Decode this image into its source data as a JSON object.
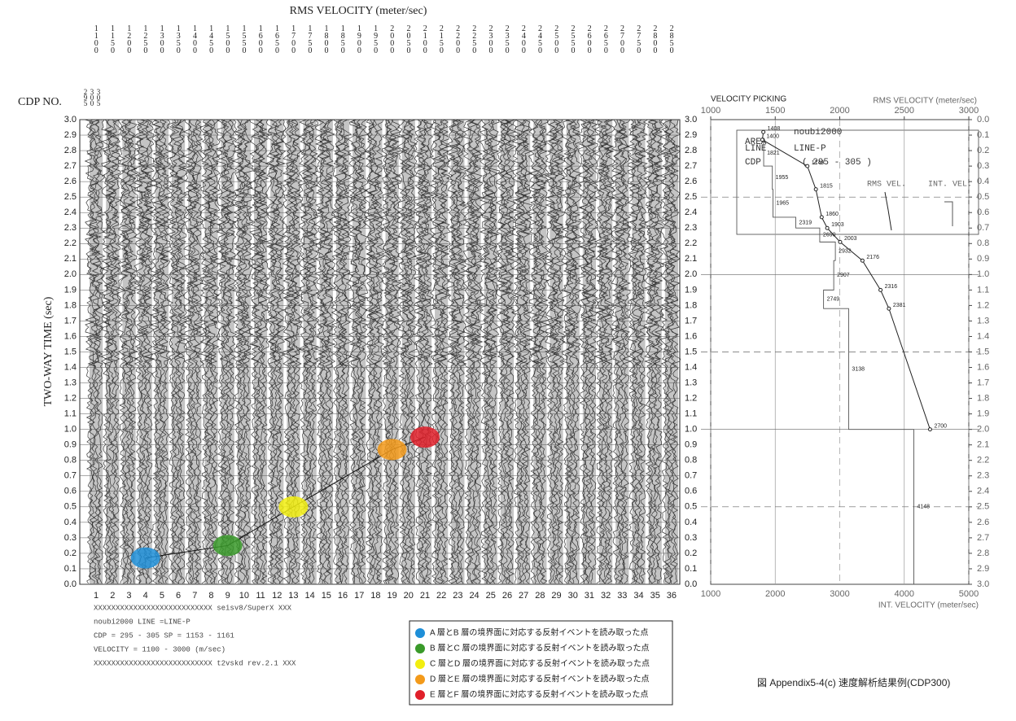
{
  "chart_data": [
    {
      "type": "gather",
      "title": "RMS VELOCITY (meter/sec)",
      "x_label": "CDP NO.",
      "y_label": "TWO-WAY TIME (sec)",
      "cdp_range": [
        295,
        300,
        305
      ],
      "velocity_labels": [
        1100,
        1150,
        1200,
        1250,
        1300,
        1350,
        1400,
        1450,
        1500,
        1550,
        1600,
        1650,
        1700,
        1750,
        1800,
        1850,
        1900,
        1950,
        2000,
        2050,
        2100,
        2150,
        2200,
        2250,
        2300,
        2350,
        2400,
        2450,
        2500,
        2550,
        2600,
        2650,
        2700,
        2750,
        2800,
        2850
      ],
      "categories": [
        "1",
        "2",
        "3",
        "4",
        "5",
        "6",
        "7",
        "8",
        "9",
        "10",
        "11",
        "12",
        "13",
        "14",
        "15",
        "16",
        "17",
        "18",
        "19",
        "20",
        "21",
        "22",
        "23",
        "24",
        "25",
        "26",
        "27",
        "28",
        "29",
        "30",
        "31",
        "32",
        "33",
        "34",
        "35",
        "36"
      ],
      "ylim": [
        0,
        3
      ],
      "yticks": [
        {
          "value": 0,
          "label": "0.0"
        },
        0.1,
        0.2,
        0.3,
        0.4,
        0.5,
        0.6,
        0.7,
        0.8,
        0.9,
        {
          "value": 1,
          "label": "1.0"
        },
        1.1,
        1.2,
        1.3,
        1.4,
        1.5,
        1.6,
        1.7,
        1.8,
        1.9,
        {
          "value": 2,
          "label": "2.0"
        },
        2.1,
        2.2,
        2.3,
        2.4,
        2.5,
        2.6,
        2.7,
        2.8,
        2.9,
        {
          "value": 3,
          "label": "3.0"
        }
      ],
      "picks": [
        {
          "cdp": 4,
          "time": 0.17,
          "color": "#1e8fd8",
          "label": "A 層とB 層の境界面に対応する反射イベントを読み取った点"
        },
        {
          "cdp": 9,
          "time": 0.25,
          "color": "#3a9a2a",
          "label": "B 層とC 層の境界面に対応する反射イベントを読み取った点"
        },
        {
          "cdp": 13,
          "time": 0.5,
          "color": "#f2ee10",
          "label": "C 層とD 層の境界面に対応する反射イベントを読み取った点"
        },
        {
          "cdp": 19,
          "time": 0.87,
          "color": "#f39a1a",
          "label": "D 層とE 層の境界面に対応する反射イベントを読み取った点"
        },
        {
          "cdp": 21,
          "time": 0.95,
          "color": "#e0202a",
          "label": "E 層とF 層の境界面に対応する反射イベントを読み取った点"
        }
      ],
      "info": [
        "XXXXXXXXXXXXXXXXXXXXXXXXXXX seisv8/SuperX XXX",
        "noubi2000          LINE =LINE-P",
        "CDP = 295 - 305      SP = 1153 - 1161",
        "VELOCITY = 1100 - 3000 (m/sec)",
        "XXXXXXXXXXXXXXXXXXXXXXXXXXX t2vskd rev.2.1 XXX"
      ]
    },
    {
      "type": "velocity",
      "title": "VELOCITY PICKING",
      "x_label": "RMS VELOCITY (meter/sec)",
      "x2_label": "INT. VELOCITY (meter/sec)",
      "xlim": [
        1000,
        3000
      ],
      "xticks": [
        1000,
        1500,
        2000,
        2500,
        3000
      ],
      "x2lim": [
        1000,
        5000
      ],
      "x2ticks": [
        1000,
        2000,
        3000,
        4000,
        5000
      ],
      "ylim": [
        0,
        3
      ],
      "yticks": [
        {
          "value": 0,
          "label": "0.0"
        },
        0.1,
        0.2,
        0.3,
        0.4,
        0.5,
        0.6,
        0.7,
        0.8,
        0.9,
        {
          "value": 1,
          "label": "1.0"
        },
        1.1,
        1.2,
        1.3,
        1.4,
        1.5,
        1.6,
        1.7,
        1.8,
        1.9,
        {
          "value": 2,
          "label": "2.0"
        },
        2.1,
        2.2,
        2.3,
        2.4,
        2.5,
        2.6,
        2.7,
        2.8,
        2.9,
        {
          "value": 3,
          "label": "3.0"
        }
      ],
      "series": [
        {
          "name": "RMS VEL.",
          "color": "#222222",
          "x": [
            0.08,
            0.13,
            0.3,
            0.45,
            0.63,
            0.7,
            0.79,
            0.91,
            1.1,
            1.22,
            2.0
          ],
          "values": [
            1408,
            1400,
            1749,
            1815,
            1860,
            1903,
            2003,
            2176,
            2316,
            2381,
            2700
          ]
        },
        {
          "name": "INT. VEL.",
          "color": "#555555",
          "axis": "x2",
          "x": [
            0.13,
            0.3,
            0.45,
            0.63,
            0.7,
            0.79,
            0.91,
            1.1,
            1.22,
            2.0
          ],
          "values": [
            1821,
            1955,
            1965,
            2319,
            2690,
            2932,
            2907,
            2749,
            3138,
            4148
          ]
        }
      ],
      "inset": [
        "AREA",
        "noubi2000",
        "LINE",
        "LINE-P",
        "CDP",
        "( 295 - 305 )"
      ]
    }
  ],
  "caption": "図 Appendix5-4(c) 速度解析結果例(CDP300)"
}
